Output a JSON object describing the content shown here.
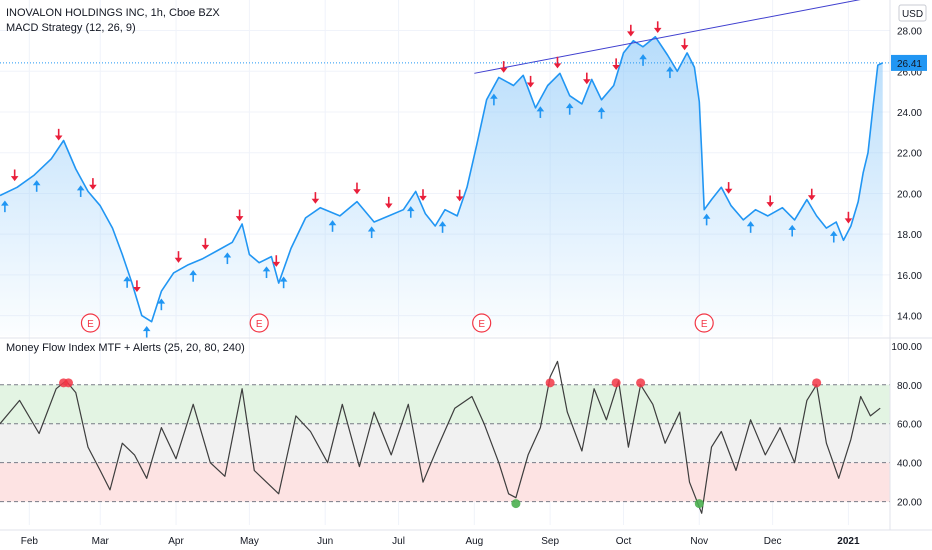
{
  "header": {
    "symbol": "INOVALON HOLDINGS INC, 1h, Cboe BZX",
    "strategy": "MACD Strategy (12, 26, 9)",
    "indicator": "Money Flow Index MTF + Alerts (25, 20, 80, 240)",
    "currency": "USD"
  },
  "colors": {
    "price_line": "#2196f3",
    "area_fill": "#90caf9",
    "buy_arrow": "#2196f3",
    "sell_arrow": "#e91e3a",
    "trendline": "#3f3fcf",
    "mfi_line": "#3d3d3d",
    "overbought_band": "#e3f4e3",
    "mid_band": "#f1f1f1",
    "oversold_band": "#fde3e3",
    "alert_high": "#f23645",
    "alert_low": "#4caf50",
    "earnings": "#f23645"
  },
  "chart_data": [
    {
      "type": "line",
      "name": "price",
      "currency": "USD",
      "ylim": [
        13,
        29.5
      ],
      "y_ticks": [
        "28.00",
        "26.00",
        "24.00",
        "22.00",
        "20.00",
        "18.00",
        "16.00",
        "14.00"
      ],
      "y_tick_values": [
        28,
        26,
        24,
        22,
        20,
        18,
        16,
        14
      ],
      "x_labels": [
        "Feb",
        "Mar",
        "Apr",
        "May",
        "Jun",
        "Jul",
        "Aug",
        "Sep",
        "Oct",
        "Nov",
        "Dec",
        "2021"
      ],
      "x_label_dates": [
        "2020-02-01",
        "2020-03-01",
        "2020-04-01",
        "2020-05-01",
        "2020-06-01",
        "2020-07-01",
        "2020-08-01",
        "2020-09-01",
        "2020-10-01",
        "2020-11-01",
        "2020-12-01",
        "2021-01-01"
      ],
      "x_range": [
        "2020-01-20",
        "2021-01-18"
      ],
      "last_price": "26.41",
      "points": [
        [
          "2020-01-20",
          19.9
        ],
        [
          "2020-01-27",
          20.3
        ],
        [
          "2020-02-03",
          20.9
        ],
        [
          "2020-02-10",
          21.7
        ],
        [
          "2020-02-15",
          22.6
        ],
        [
          "2020-02-20",
          21.2
        ],
        [
          "2020-02-25",
          20.1
        ],
        [
          "2020-03-01",
          19.4
        ],
        [
          "2020-03-06",
          18.3
        ],
        [
          "2020-03-10",
          17.0
        ],
        [
          "2020-03-14",
          15.6
        ],
        [
          "2020-03-18",
          14.0
        ],
        [
          "2020-03-22",
          13.7
        ],
        [
          "2020-03-26",
          15.2
        ],
        [
          "2020-03-31",
          16.1
        ],
        [
          "2020-04-06",
          16.5
        ],
        [
          "2020-04-12",
          16.8
        ],
        [
          "2020-04-18",
          17.2
        ],
        [
          "2020-04-24",
          17.6
        ],
        [
          "2020-04-28",
          18.5
        ],
        [
          "2020-05-01",
          17.0
        ],
        [
          "2020-05-05",
          16.6
        ],
        [
          "2020-05-10",
          16.9
        ],
        [
          "2020-05-13",
          15.6
        ],
        [
          "2020-05-18",
          17.3
        ],
        [
          "2020-05-24",
          18.8
        ],
        [
          "2020-05-30",
          19.3
        ],
        [
          "2020-06-07",
          18.9
        ],
        [
          "2020-06-14",
          19.6
        ],
        [
          "2020-06-21",
          18.6
        ],
        [
          "2020-06-27",
          18.9
        ],
        [
          "2020-07-03",
          19.2
        ],
        [
          "2020-07-08",
          20.1
        ],
        [
          "2020-07-12",
          19.0
        ],
        [
          "2020-07-16",
          18.4
        ],
        [
          "2020-07-20",
          19.2
        ],
        [
          "2020-07-25",
          18.9
        ],
        [
          "2020-07-29",
          20.3
        ],
        [
          "2020-08-02",
          22.4
        ],
        [
          "2020-08-06",
          24.6
        ],
        [
          "2020-08-11",
          25.7
        ],
        [
          "2020-08-17",
          25.3
        ],
        [
          "2020-08-21",
          25.8
        ],
        [
          "2020-08-26",
          24.2
        ],
        [
          "2020-08-31",
          25.3
        ],
        [
          "2020-09-05",
          25.9
        ],
        [
          "2020-09-09",
          24.8
        ],
        [
          "2020-09-14",
          24.4
        ],
        [
          "2020-09-18",
          25.6
        ],
        [
          "2020-09-22",
          24.6
        ],
        [
          "2020-09-27",
          25.3
        ],
        [
          "2020-10-01",
          26.9
        ],
        [
          "2020-10-05",
          27.5
        ],
        [
          "2020-10-09",
          27.2
        ],
        [
          "2020-10-14",
          27.7
        ],
        [
          "2020-10-19",
          26.8
        ],
        [
          "2020-10-23",
          26.0
        ],
        [
          "2020-10-27",
          26.9
        ],
        [
          "2020-10-30",
          26.2
        ],
        [
          "2020-11-01",
          24.5
        ],
        [
          "2020-11-02",
          22.0
        ],
        [
          "2020-11-03",
          19.2
        ],
        [
          "2020-11-06",
          19.7
        ],
        [
          "2020-11-10",
          20.3
        ],
        [
          "2020-11-14",
          19.4
        ],
        [
          "2020-11-19",
          18.7
        ],
        [
          "2020-11-24",
          19.2
        ],
        [
          "2020-11-29",
          18.9
        ],
        [
          "2020-12-05",
          19.3
        ],
        [
          "2020-12-10",
          18.7
        ],
        [
          "2020-12-15",
          19.7
        ],
        [
          "2020-12-19",
          18.9
        ],
        [
          "2020-12-23",
          18.3
        ],
        [
          "2020-12-27",
          18.6
        ],
        [
          "2020-12-30",
          17.7
        ],
        [
          "2021-01-02",
          18.4
        ],
        [
          "2021-01-05",
          19.6
        ],
        [
          "2021-01-07",
          21.0
        ],
        [
          "2021-01-09",
          22.0
        ],
        [
          "2021-01-11",
          24.2
        ],
        [
          "2021-01-13",
          26.3
        ],
        [
          "2021-01-15",
          26.41
        ]
      ],
      "trendline": [
        [
          "2020-08-01",
          25.9
        ],
        [
          "2021-01-18",
          29.8
        ]
      ],
      "earnings_marker": "E",
      "earnings_dates": [
        "2020-02-26",
        "2020-05-05",
        "2020-08-04",
        "2020-11-03"
      ],
      "signals": {
        "buy_dates": [
          "2020-01-22",
          "2020-02-04",
          "2020-02-22",
          "2020-03-12",
          "2020-03-20",
          "2020-03-26",
          "2020-04-08",
          "2020-04-22",
          "2020-05-08",
          "2020-05-15",
          "2020-06-04",
          "2020-06-20",
          "2020-07-06",
          "2020-07-19",
          "2020-08-09",
          "2020-08-28",
          "2020-09-09",
          "2020-09-22",
          "2020-10-09",
          "2020-10-20",
          "2020-11-04",
          "2020-11-22",
          "2020-12-09",
          "2020-12-26"
        ],
        "sell_dates": [
          "2020-01-26",
          "2020-02-13",
          "2020-02-27",
          "2020-03-16",
          "2020-04-02",
          "2020-04-13",
          "2020-04-27",
          "2020-05-12",
          "2020-05-28",
          "2020-06-14",
          "2020-06-27",
          "2020-07-11",
          "2020-07-26",
          "2020-08-13",
          "2020-08-24",
          "2020-09-04",
          "2020-09-16",
          "2020-09-28",
          "2020-10-04",
          "2020-10-15",
          "2020-10-26",
          "2020-11-13",
          "2020-11-30",
          "2020-12-17",
          "2021-01-01"
        ]
      }
    },
    {
      "type": "line",
      "name": "mfi",
      "ylim": [
        8,
        103
      ],
      "y_ticks": [
        "100.00",
        "80.00",
        "60.00",
        "40.00",
        "20.00"
      ],
      "y_tick_values": [
        100,
        80,
        60,
        40,
        20
      ],
      "levels": [
        80,
        60,
        40,
        20
      ],
      "bands": [
        {
          "from": 60,
          "to": 80,
          "color": "#e3f4e3"
        },
        {
          "from": 40,
          "to": 60,
          "color": "#f1f1f1"
        },
        {
          "from": 20,
          "to": 40,
          "color": "#fde3e3"
        }
      ],
      "points": [
        [
          "2020-01-20",
          60
        ],
        [
          "2020-01-28",
          72
        ],
        [
          "2020-02-05",
          55
        ],
        [
          "2020-02-12",
          78
        ],
        [
          "2020-02-16",
          82
        ],
        [
          "2020-02-20",
          76
        ],
        [
          "2020-02-25",
          48
        ],
        [
          "2020-03-01",
          36
        ],
        [
          "2020-03-05",
          26
        ],
        [
          "2020-03-10",
          50
        ],
        [
          "2020-03-15",
          44
        ],
        [
          "2020-03-20",
          32
        ],
        [
          "2020-03-26",
          58
        ],
        [
          "2020-04-01",
          42
        ],
        [
          "2020-04-08",
          70
        ],
        [
          "2020-04-15",
          40
        ],
        [
          "2020-04-21",
          33
        ],
        [
          "2020-04-28",
          78
        ],
        [
          "2020-05-03",
          36
        ],
        [
          "2020-05-08",
          30
        ],
        [
          "2020-05-13",
          24
        ],
        [
          "2020-05-20",
          64
        ],
        [
          "2020-05-26",
          56
        ],
        [
          "2020-06-02",
          40
        ],
        [
          "2020-06-08",
          70
        ],
        [
          "2020-06-15",
          38
        ],
        [
          "2020-06-21",
          66
        ],
        [
          "2020-06-28",
          44
        ],
        [
          "2020-07-05",
          70
        ],
        [
          "2020-07-11",
          30
        ],
        [
          "2020-07-17",
          48
        ],
        [
          "2020-07-24",
          68
        ],
        [
          "2020-07-31",
          74
        ],
        [
          "2020-08-05",
          60
        ],
        [
          "2020-08-11",
          40
        ],
        [
          "2020-08-15",
          24
        ],
        [
          "2020-08-18",
          22
        ],
        [
          "2020-08-23",
          44
        ],
        [
          "2020-08-28",
          58
        ],
        [
          "2020-09-01",
          84
        ],
        [
          "2020-09-04",
          92
        ],
        [
          "2020-09-08",
          66
        ],
        [
          "2020-09-14",
          46
        ],
        [
          "2020-09-19",
          78
        ],
        [
          "2020-09-24",
          62
        ],
        [
          "2020-09-29",
          82
        ],
        [
          "2020-10-03",
          48
        ],
        [
          "2020-10-08",
          80
        ],
        [
          "2020-10-13",
          70
        ],
        [
          "2020-10-18",
          50
        ],
        [
          "2020-10-24",
          66
        ],
        [
          "2020-10-28",
          30
        ],
        [
          "2020-11-02",
          14
        ],
        [
          "2020-11-06",
          48
        ],
        [
          "2020-11-10",
          56
        ],
        [
          "2020-11-16",
          36
        ],
        [
          "2020-11-22",
          62
        ],
        [
          "2020-11-28",
          44
        ],
        [
          "2020-12-04",
          58
        ],
        [
          "2020-12-10",
          40
        ],
        [
          "2020-12-15",
          72
        ],
        [
          "2020-12-19",
          80
        ],
        [
          "2020-12-23",
          50
        ],
        [
          "2020-12-28",
          32
        ],
        [
          "2021-01-02",
          52
        ],
        [
          "2021-01-06",
          74
        ],
        [
          "2021-01-10",
          64
        ],
        [
          "2021-01-14",
          68
        ]
      ],
      "alerts_high_dates": [
        "2020-02-15",
        "2020-02-17",
        "2020-09-01",
        "2020-09-28",
        "2020-10-08",
        "2020-12-19"
      ],
      "alerts_low_dates": [
        "2020-08-18",
        "2020-11-01"
      ]
    }
  ]
}
